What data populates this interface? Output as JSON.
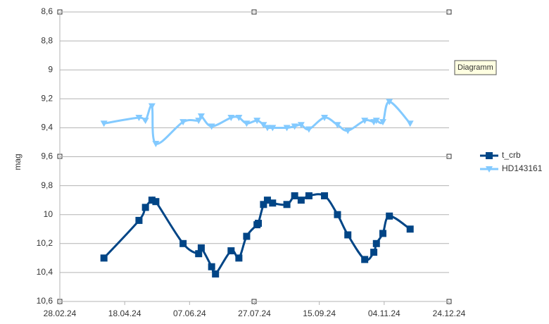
{
  "chart_data": {
    "type": "line",
    "y_label": "mag",
    "tooltip": "Diagramm",
    "y_inverted": true,
    "ylim": [
      10.6,
      8.6
    ],
    "yticks": [
      {
        "value": 8.6,
        "label": "8,6"
      },
      {
        "value": 8.8,
        "label": "8,8"
      },
      9,
      {
        "value": 9.2,
        "label": "9,2"
      },
      {
        "value": 9.4,
        "label": "9,4"
      },
      {
        "value": 9.6,
        "label": "9,6"
      },
      {
        "value": 9.8,
        "label": "9,8"
      },
      10,
      {
        "value": 10.2,
        "label": "10,2"
      },
      {
        "value": 10.4,
        "label": "10,4"
      },
      {
        "value": 10.6,
        "label": "10,6"
      }
    ],
    "xlim": [
      "2024-02-28",
      "2024-12-24"
    ],
    "xticks": [
      {
        "value": "2024-02-28",
        "label": "28.02.24"
      },
      {
        "value": "2024-04-18",
        "label": "18.04.24"
      },
      {
        "value": "2024-06-07",
        "label": "07.06.24"
      },
      {
        "value": "2024-07-27",
        "label": "27.07.24"
      },
      {
        "value": "2024-09-15",
        "label": "15.09.24"
      },
      {
        "value": "2024-11-04",
        "label": "04.11.24"
      },
      {
        "value": "2024-12-24",
        "label": "24.12.24"
      }
    ],
    "grid": true,
    "legend": "right",
    "series": [
      {
        "name": "t_crb",
        "color": "#004586",
        "marker": "square",
        "x": [
          "2024-04-02",
          "2024-04-29",
          "2024-05-04",
          "2024-05-09",
          "2024-05-12",
          "2024-06-02",
          "2024-06-14",
          "2024-06-16",
          "2024-06-24",
          "2024-06-27",
          "2024-07-09",
          "2024-07-15",
          "2024-07-21",
          "2024-07-29",
          "2024-07-30",
          "2024-08-03",
          "2024-08-06",
          "2024-08-10",
          "2024-08-21",
          "2024-08-27",
          "2024-09-01",
          "2024-09-07",
          "2024-09-19",
          "2024-09-29",
          "2024-10-07",
          "2024-10-20",
          "2024-10-27",
          "2024-10-29",
          "2024-11-03",
          "2024-11-08",
          "2024-11-24"
        ],
        "values": [
          10.3,
          10.04,
          9.95,
          9.9,
          9.91,
          10.2,
          10.27,
          10.23,
          10.36,
          10.41,
          10.25,
          10.3,
          10.15,
          10.07,
          10.06,
          9.93,
          9.9,
          9.92,
          9.93,
          9.87,
          9.9,
          9.87,
          9.87,
          10.0,
          10.14,
          10.31,
          10.26,
          10.2,
          10.13,
          10.01,
          10.1
        ]
      },
      {
        "name": "HD143161",
        "color": "#83caff",
        "marker": "triangle-down",
        "x": [
          "2024-04-02",
          "2024-04-29",
          "2024-05-04",
          "2024-05-09",
          "2024-05-12",
          "2024-06-02",
          "2024-06-14",
          "2024-06-16",
          "2024-06-24",
          "2024-07-09",
          "2024-07-15",
          "2024-07-21",
          "2024-07-29",
          "2024-08-03",
          "2024-08-06",
          "2024-08-10",
          "2024-08-21",
          "2024-08-27",
          "2024-09-01",
          "2024-09-07",
          "2024-09-19",
          "2024-09-29",
          "2024-10-07",
          "2024-10-20",
          "2024-10-27",
          "2024-10-29",
          "2024-11-03",
          "2024-11-08",
          "2024-11-24"
        ],
        "values": [
          9.37,
          9.33,
          9.35,
          9.25,
          9.51,
          9.36,
          9.35,
          9.32,
          9.39,
          9.33,
          9.33,
          9.37,
          9.35,
          9.38,
          9.4,
          9.4,
          9.4,
          9.39,
          9.38,
          9.41,
          9.33,
          9.38,
          9.42,
          9.35,
          9.36,
          9.35,
          9.36,
          9.22,
          9.37
        ]
      }
    ]
  }
}
